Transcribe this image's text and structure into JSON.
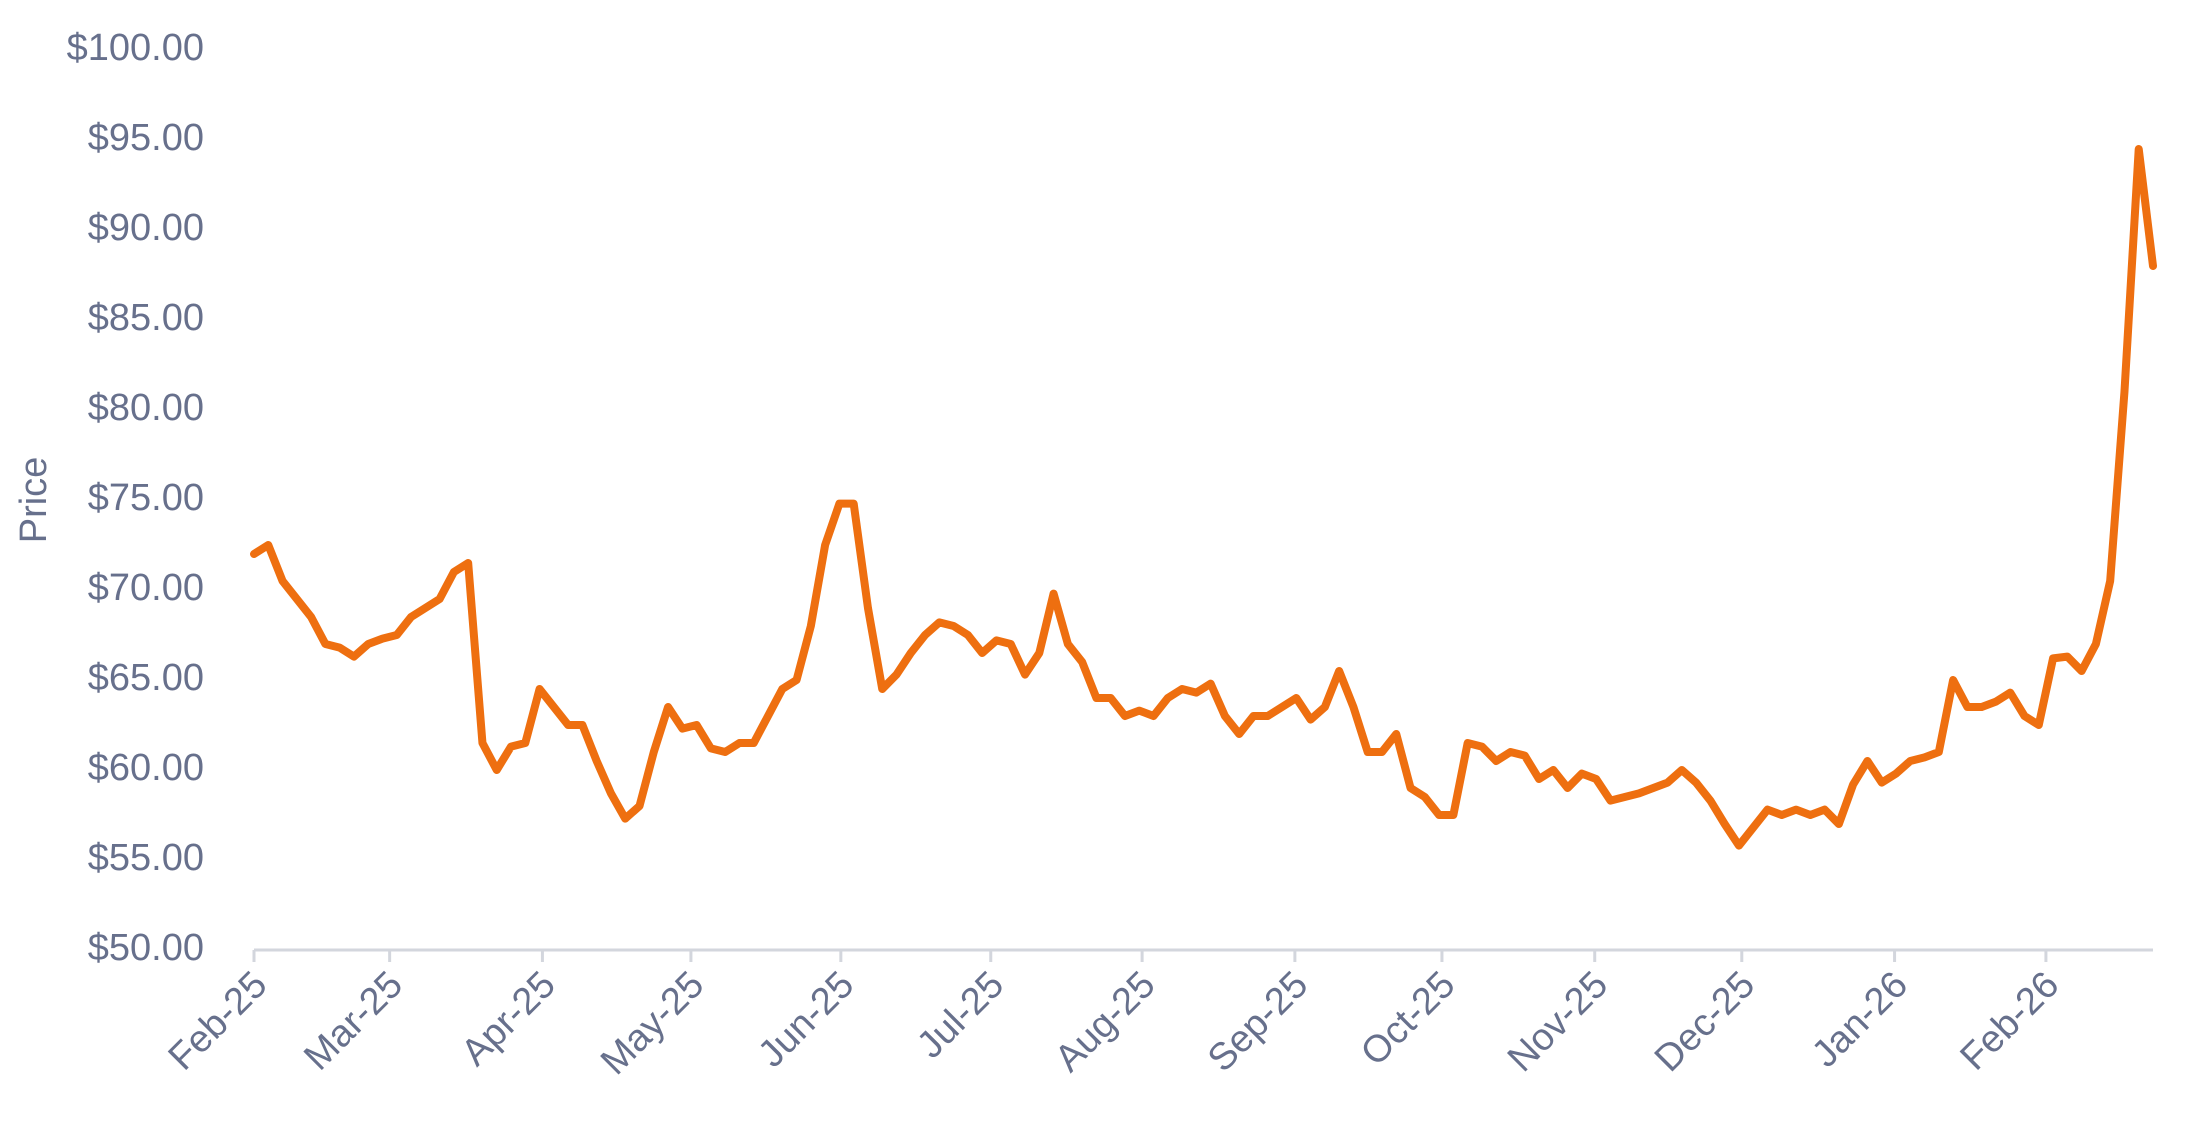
{
  "chart_data": {
    "type": "line",
    "y_label": "Price",
    "color": "#ee6f10",
    "values": [
      72,
      72.5,
      70.5,
      69.5,
      68.5,
      67,
      66.8,
      66.3,
      67,
      67.3,
      67.5,
      68.5,
      69,
      69.5,
      71,
      71.5,
      61.5,
      60,
      61.3,
      61.5,
      64.5,
      63.5,
      62.5,
      62.5,
      60.5,
      58.7,
      57.3,
      58,
      61,
      63.5,
      62.3,
      62.5,
      61.2,
      61,
      61.5,
      61.5,
      63,
      64.5,
      65,
      68,
      72.5,
      74.8,
      74.8,
      69,
      64.5,
      65.3,
      66.5,
      67.5,
      68.2,
      68,
      67.5,
      66.5,
      67.2,
      67,
      65.3,
      66.5,
      69.8,
      67,
      66,
      64,
      64,
      63,
      63.3,
      63,
      64,
      64.5,
      64.3,
      64.8,
      63,
      62,
      63,
      63,
      63.5,
      64,
      62.8,
      63.5,
      65.5,
      63.5,
      61,
      61,
      62,
      59,
      58.5,
      57.5,
      57.5,
      61.5,
      61.3,
      60.5,
      61,
      60.8,
      59.5,
      60,
      59,
      59.8,
      59.5,
      58.3,
      58.5,
      58.7,
      59,
      59.3,
      60,
      59.3,
      58.3,
      57,
      55.8,
      56.8,
      57.8,
      57.5,
      57.8,
      57.5,
      57.8,
      57,
      59.2,
      60.5,
      59.3,
      59.8,
      60.5,
      60.7,
      61,
      65,
      63.5,
      63.5,
      63.8,
      64.3,
      63,
      62.5,
      66.2,
      66.3,
      65.5,
      67,
      70.5,
      81,
      94.5,
      88
    ],
    "xlim": [
      0,
      133
    ],
    "xticks": [
      {
        "value": 0,
        "label": "Feb-25"
      },
      {
        "value": 9.5,
        "label": "Mar-25"
      },
      {
        "value": 20.2,
        "label": "Apr-25"
      },
      {
        "value": 30.6,
        "label": "May-25"
      },
      {
        "value": 41.1,
        "label": "Jun-25"
      },
      {
        "value": 51.6,
        "label": "Jul-25"
      },
      {
        "value": 62.2,
        "label": "Aug-25"
      },
      {
        "value": 72.9,
        "label": "Sep-25"
      },
      {
        "value": 83.2,
        "label": "Oct-25"
      },
      {
        "value": 93.9,
        "label": "Nov-25"
      },
      {
        "value": 104.2,
        "label": "Dec-25"
      },
      {
        "value": 114.9,
        "label": "Jan-26"
      },
      {
        "value": 125.5,
        "label": "Feb-26"
      }
    ],
    "ylim": [
      50,
      100
    ],
    "yticks": [
      {
        "value": 50,
        "label": "$50.00"
      },
      {
        "value": 55,
        "label": "$55.00"
      },
      {
        "value": 60,
        "label": "$60.00"
      },
      {
        "value": 65,
        "label": "$65.00"
      },
      {
        "value": 70,
        "label": "$70.00"
      },
      {
        "value": 75,
        "label": "$75.00"
      },
      {
        "value": 80,
        "label": "$80.00"
      },
      {
        "value": 85,
        "label": "$85.00"
      },
      {
        "value": 90,
        "label": "$90.00"
      },
      {
        "value": 95,
        "label": "$95.00"
      },
      {
        "value": 100,
        "label": "$100.00"
      }
    ]
  }
}
